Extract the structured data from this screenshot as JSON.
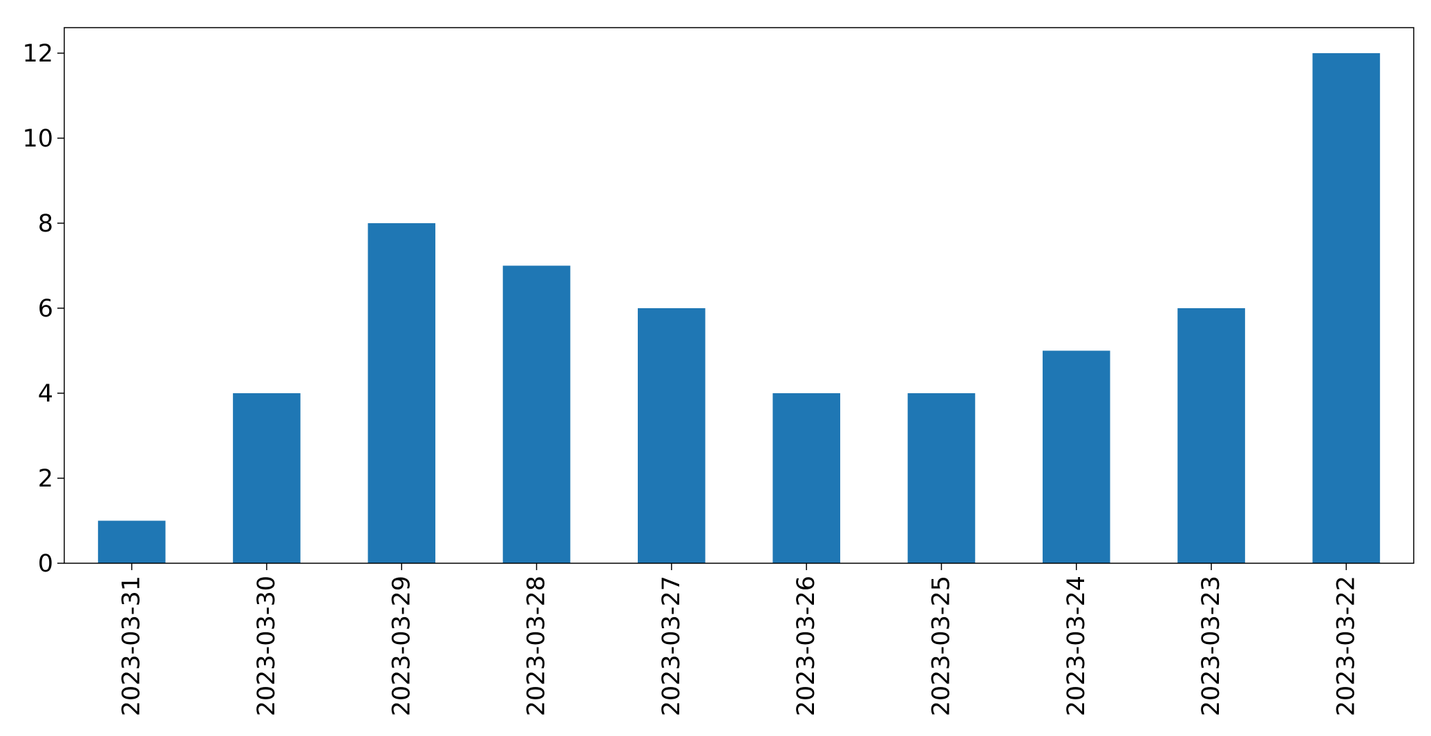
{
  "chart_data": {
    "type": "bar",
    "categories": [
      "2023-03-31",
      "2023-03-30",
      "2023-03-29",
      "2023-03-28",
      "2023-03-27",
      "2023-03-26",
      "2023-03-25",
      "2023-03-24",
      "2023-03-23",
      "2023-03-22"
    ],
    "values": [
      1,
      4,
      8,
      7,
      6,
      4,
      4,
      5,
      6,
      12
    ],
    "title": "",
    "xlabel": "",
    "ylabel": "",
    "ylim": [
      0,
      12.6
    ],
    "yticks": [
      0,
      2,
      4,
      6,
      8,
      10,
      12
    ],
    "grid": false,
    "legend": "none",
    "bar_color": "#1f77b4"
  }
}
